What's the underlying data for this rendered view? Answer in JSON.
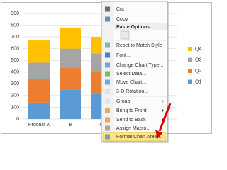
{
  "chart_data": {
    "type": "bar",
    "stacked": true,
    "categories": [
      "Product A",
      "B",
      "C"
    ],
    "series": [
      {
        "name": "Q1",
        "color": "#5b9bd5",
        "values": [
          140,
          250,
          220
        ]
      },
      {
        "name": "Q2",
        "color": "#ed7d31",
        "values": [
          200,
          190,
          190
        ]
      },
      {
        "name": "Q3",
        "color": "#a5a5a5",
        "values": [
          140,
          160,
          150
        ]
      },
      {
        "name": "Q4",
        "color": "#ffc000",
        "values": [
          190,
          180,
          140
        ]
      }
    ],
    "ylim": [
      0,
      900
    ],
    "yticks": [
      0,
      100,
      200,
      300,
      400,
      500,
      600,
      700,
      800,
      900
    ],
    "grid": true,
    "legend": "right"
  },
  "context_menu": {
    "items": [
      {
        "label": "Cut"
      },
      {
        "label": "Copy"
      },
      {
        "label": "Paste Options:",
        "header": true
      },
      {
        "label": "Reset to Match Style"
      },
      {
        "label": "Font..."
      },
      {
        "label": "Change Chart Type..."
      },
      {
        "label": "Select Data..."
      },
      {
        "label": "Move Chart..."
      },
      {
        "label": "3-D Rotation...",
        "disabled": true
      },
      {
        "label": "Group",
        "disabled": true,
        "submenu": true
      },
      {
        "label": "Bring to Front",
        "submenu": true
      },
      {
        "label": "Send to Back",
        "submenu": true
      },
      {
        "label": "Assign Macro..."
      },
      {
        "label": "Format Chart Area...",
        "highlighted": true
      }
    ]
  }
}
